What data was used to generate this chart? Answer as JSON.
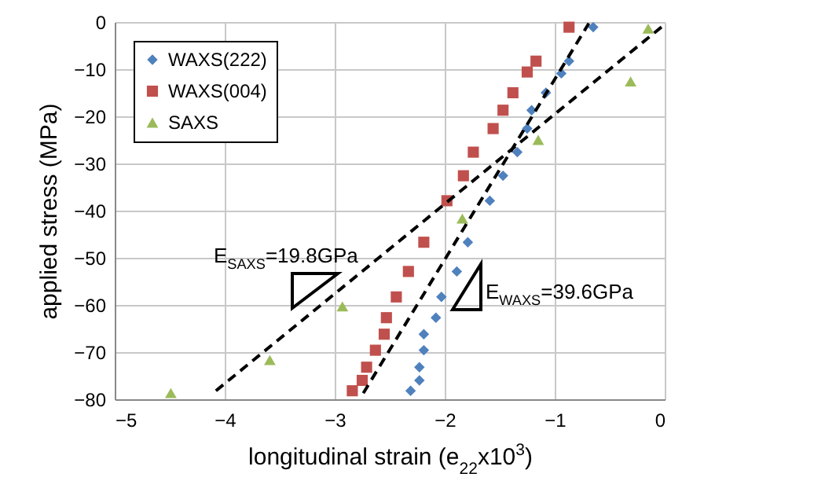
{
  "chart_data": {
    "type": "scatter",
    "xlabel": "longitudinal strain (e$_{22}$x10$^{3}$)",
    "ylabel": "applied stress (MPa)",
    "xlim": [
      -5,
      0
    ],
    "ylim": [
      -80,
      0
    ],
    "xticks": [
      -5,
      -4,
      -3,
      -2,
      -1,
      0
    ],
    "yticks": [
      -80,
      -70,
      -60,
      -50,
      -40,
      -30,
      -20,
      -10,
      0
    ],
    "grid": true,
    "legend": "top left",
    "series": [
      {
        "name": "WAXS(222)",
        "color": "#4f81bd",
        "marker": "diamond",
        "x": [
          -0.65,
          -0.87,
          -0.94,
          -1.08,
          -1.21,
          -1.25,
          -1.34,
          -1.47,
          -1.59,
          -1.79,
          -1.89,
          -2.03,
          -2.08,
          -2.19,
          -2.19,
          -2.23,
          -2.23,
          -2.31
        ],
        "values": [
          -1.1,
          -8.3,
          -10.9,
          -15.0,
          -18.7,
          -22.6,
          -27.6,
          -32.6,
          -37.9,
          -46.7,
          -52.9,
          -58.3,
          -62.7,
          -66.2,
          -69.6,
          -73.2,
          -76.0,
          -78.2
        ]
      },
      {
        "name": "WAXS(004)",
        "color": "#c0504d",
        "marker": "square",
        "x": [
          -0.87,
          -1.17,
          -1.25,
          -1.38,
          -1.47,
          -1.56,
          -1.74,
          -1.83,
          -1.98,
          -2.19,
          -2.33,
          -2.44,
          -2.53,
          -2.55,
          -2.63,
          -2.71,
          -2.75,
          -2.84
        ],
        "values": [
          -1.1,
          -8.3,
          -10.6,
          -15.0,
          -18.7,
          -22.6,
          -27.6,
          -32.6,
          -37.9,
          -46.7,
          -52.9,
          -58.3,
          -62.7,
          -66.2,
          -69.6,
          -73.2,
          -76.0,
          -78.2
        ]
      },
      {
        "name": "SAXS",
        "color": "#9bbb59",
        "marker": "triangle",
        "x": [
          -0.15,
          -0.31,
          -1.15,
          -1.84,
          -2.93,
          -3.59,
          -4.49
        ],
        "values": [
          -1.4,
          -12.6,
          -25.0,
          -41.7,
          -60.3,
          -71.7,
          -78.7
        ]
      },
      {
        "type": "line",
        "color": "#000000",
        "line_style": "dashed",
        "marker": "none",
        "x": [
          -4.08,
          0
        ],
        "values": [
          -78.2,
          -0.5
        ]
      },
      {
        "type": "line",
        "color": "#000000",
        "line_style": "dashed",
        "marker": "none",
        "x": [
          -2.74,
          -0.69
        ],
        "values": [
          -78.7,
          -0.3
        ]
      }
    ],
    "annotations": [
      "E$_{SAXS}$=19.8GPa",
      "E$_{WAXS}$=39.6GPa"
    ]
  }
}
